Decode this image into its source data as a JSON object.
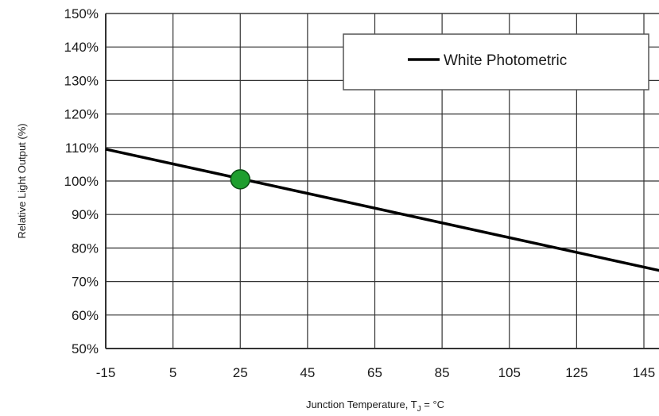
{
  "chart_data": {
    "type": "line",
    "xlabel": "Junction Temperature, T",
    "xlabel_sub": "J",
    "xlabel_suffix": " = °C",
    "ylabel": "Relative Light Output (%)",
    "xlim": [
      -15,
      150
    ],
    "ylim": [
      50,
      150
    ],
    "x_ticks": [
      -15,
      5,
      25,
      45,
      65,
      85,
      105,
      125,
      145
    ],
    "y_ticks": [
      50,
      60,
      70,
      80,
      90,
      100,
      110,
      120,
      130,
      140,
      150
    ],
    "y_tick_labels": [
      "50%",
      "60%",
      "70%",
      "80%",
      "90%",
      "100%",
      "110%",
      "120%",
      "130%",
      "140%",
      "150%"
    ],
    "grid": true,
    "legend_position": "top-right",
    "series": [
      {
        "name": "White Photometric",
        "color": "#000000",
        "x": [
          -15,
          150
        ],
        "y": [
          109.5,
          73.2
        ]
      }
    ],
    "highlight_point": {
      "x": 25,
      "y": 100.5,
      "color": "#1e9e2e"
    }
  }
}
